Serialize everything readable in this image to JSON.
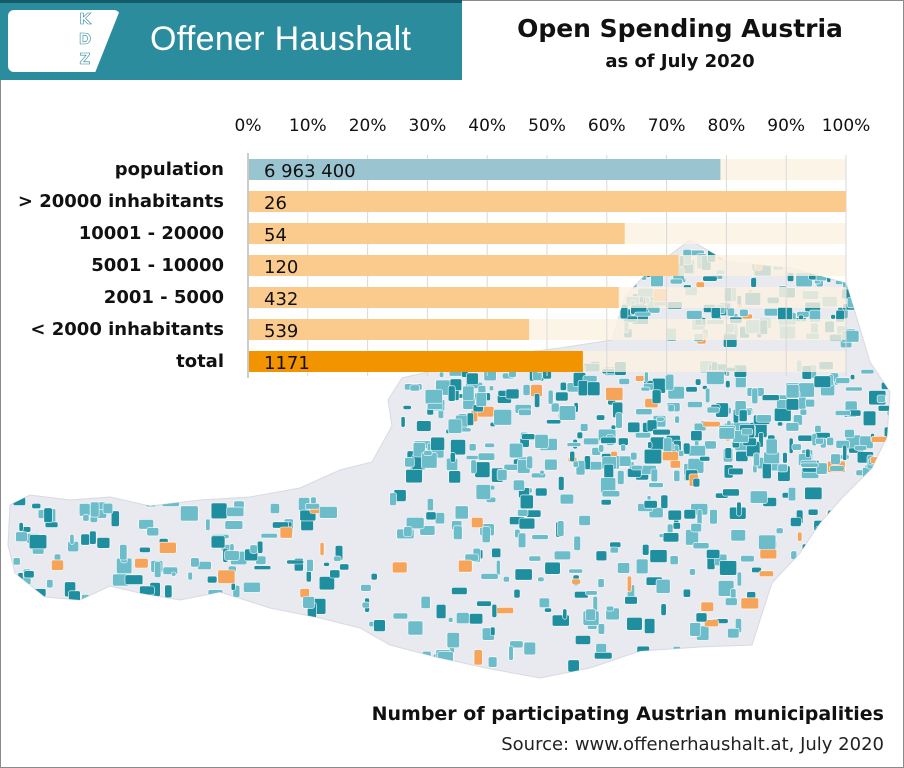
{
  "header": {
    "logo_letters": [
      "K",
      "D",
      "Z"
    ],
    "brand": "Offener Haushalt",
    "title": "Open Spending Austria",
    "subtitle": "as of July 2020"
  },
  "footer": {
    "caption": "Number of participating Austrian municipalities",
    "source": "Source: www.offenerhaushalt.at, July 2020"
  },
  "colors": {
    "banner": "#2b8c9e",
    "population_bar": "#9bc4d1",
    "category_bar": "#fbcb8e",
    "total_bar": "#f29300",
    "track": "#fdf1e2",
    "map_land": "#e9e9f0",
    "map_teal": "#1f8e9f",
    "map_light_teal": "#6cbcc9",
    "map_orange": "#f6a45a"
  },
  "chart_data": {
    "type": "bar",
    "orientation": "horizontal",
    "categories": [
      "population",
      "> 20000 inhabitants",
      "10001 - 20000",
      "5001 - 10000",
      "2001 - 5000",
      "< 2000 inhabitants",
      "total"
    ],
    "value_labels": [
      "6 963 400",
      "26",
      "54",
      "120",
      "432",
      "539",
      "1171"
    ],
    "percent_values": [
      79,
      100,
      63,
      72,
      62,
      47,
      56
    ],
    "x_ticks": [
      "0%",
      "10%",
      "20%",
      "30%",
      "40%",
      "50%",
      "60%",
      "70%",
      "80%",
      "90%",
      "100%"
    ],
    "xlim": [
      0,
      100
    ],
    "grid": true,
    "title": "Number of participating Austrian municipalities"
  }
}
